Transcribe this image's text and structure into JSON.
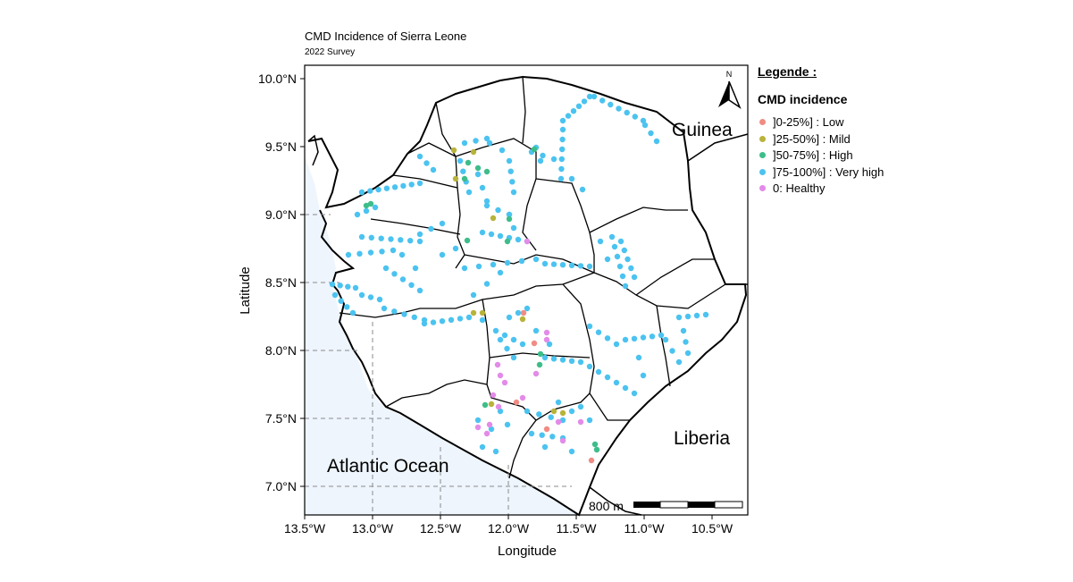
{
  "title": "CMD Incidence of Sierra Leone",
  "subtitle": "2022 Survey",
  "axes": {
    "xlabel": "Longitude",
    "ylabel": "Latitude",
    "x_ticks": [
      "13.5°W",
      "13.0°W",
      "12.5°W",
      "12.0°W",
      "11.5°W",
      "11.0°W",
      "10.5°W"
    ],
    "y_ticks": [
      "10.0°N",
      "9.5°N",
      "9.0°N",
      "8.5°N",
      "8.0°N",
      "7.5°N",
      "7.0°N"
    ]
  },
  "map_labels": {
    "guinea": "Guinea",
    "liberia": "Liberia",
    "ocean": "Atlantic Ocean",
    "north": "N",
    "scale": "800 m"
  },
  "legend": {
    "title": "Legende :",
    "subtitle": "CMD incidence",
    "items": [
      {
        "label": "]0-25%] : Low",
        "color": "#F08C84"
      },
      {
        "label": "]25-50%] : Mild",
        "color": "#B8B33A"
      },
      {
        "label": "]50-75%] : High",
        "color": "#3DBD8A"
      },
      {
        "label": "]75-100%] : Very high",
        "color": "#4BC3F0"
      },
      {
        "label": "0: Healthy",
        "color": "#E38BE8"
      }
    ]
  },
  "colors": {
    "ocean": "#EEF5FD",
    "land": "#ffffff",
    "border": "#000000",
    "grid": "#8a8a8a"
  }
}
